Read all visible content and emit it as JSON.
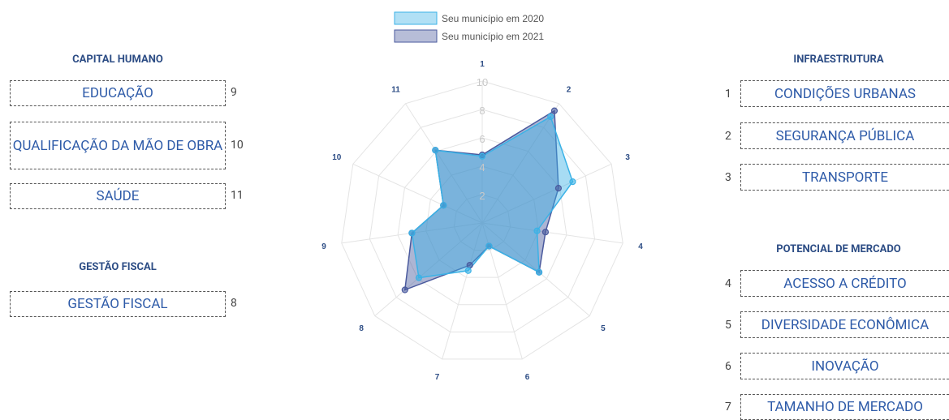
{
  "chart_data": {
    "type": "radar",
    "categories": [
      "1",
      "2",
      "3",
      "4",
      "5",
      "6",
      "7",
      "8",
      "9",
      "10",
      "11"
    ],
    "ylim": [
      0,
      10
    ],
    "yticks": [
      2,
      4,
      6,
      8,
      10
    ],
    "grid": true,
    "series": [
      {
        "name": "Seu município em 2020",
        "color": "#3bb2e6",
        "values": [
          4.7,
          8.9,
          7.0,
          3.9,
          5.3,
          1.7,
          3.5,
          5.9,
          5.0,
          3.0,
          6.1
        ]
      },
      {
        "name": "Seu município em 2021",
        "color": "#4a5a9e",
        "values": [
          4.8,
          9.4,
          5.9,
          4.5,
          5.3,
          1.7,
          3.1,
          7.2,
          5.0,
          3.0,
          6.1
        ]
      }
    ]
  },
  "panels": {
    "left": [
      {
        "title": "CAPITAL HUMANO",
        "items": [
          {
            "label": "EDUCAÇÃO",
            "number": 9
          },
          {
            "label": "QUALIFICAÇÃO DA MÃO DE OBRA",
            "number": 10
          },
          {
            "label": "SAÚDE",
            "number": 11
          }
        ]
      },
      {
        "title": "GESTÃO FISCAL",
        "items": [
          {
            "label": "GESTÃO FISCAL",
            "number": 8
          }
        ]
      }
    ],
    "right": [
      {
        "title": "INFRAESTRUTURA",
        "items": [
          {
            "label": "CONDIÇÕES URBANAS",
            "number": 1
          },
          {
            "label": "SEGURANÇA PÚBLICA",
            "number": 2
          },
          {
            "label": "TRANSPORTE",
            "number": 3
          }
        ]
      },
      {
        "title": "POTENCIAL DE MERCADO",
        "items": [
          {
            "label": "ACESSO A CRÉDITO",
            "number": 4
          },
          {
            "label": "DIVERSIDADE ECONÔMICA",
            "number": 5
          },
          {
            "label": "INOVAÇÃO",
            "number": 6
          },
          {
            "label": "TAMANHO DE MERCADO",
            "number": 7
          }
        ]
      }
    ]
  }
}
